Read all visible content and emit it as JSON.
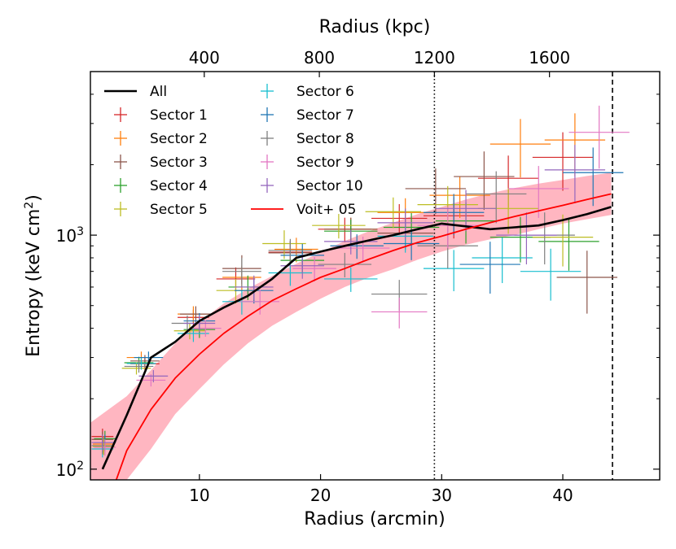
{
  "chart_data": {
    "type": "scatter",
    "xlabel": "Radius (arcmin)",
    "ylabel": "Entropy (keV cm",
    "ylabel_sup": "2",
    "ylabel_close": ")",
    "xlim": [
      1,
      48
    ],
    "ylim": [
      90,
      5000
    ],
    "yscale": "log",
    "x_ticks": [
      10,
      20,
      30,
      40
    ],
    "y_ticks": [
      {
        "value": 100,
        "base": "10",
        "exp": "2"
      },
      {
        "value": 1000,
        "base": "10",
        "exp": "3"
      }
    ],
    "top_axis": {
      "label": "Radius (kpc)",
      "ticks": [
        {
          "label": "400",
          "x": 10.4
        },
        {
          "label": "800",
          "x": 19.9
        },
        {
          "label": "1200",
          "x": 29.4
        },
        {
          "label": "1600",
          "x": 38.9
        }
      ]
    },
    "vlines": [
      {
        "name": "r500-dotted",
        "x": 29.4,
        "style": "dotted",
        "color": "#000000"
      },
      {
        "name": "r200-dashed",
        "x": 44.1,
        "style": "dashed",
        "color": "#000000"
      }
    ],
    "band": {
      "name": "voit-05-scatter",
      "color": "#ffb6c1",
      "x": [
        1,
        4,
        6,
        8,
        10,
        12,
        14,
        16,
        18,
        20,
        22,
        24,
        26,
        28,
        30,
        32,
        34,
        36,
        38,
        40,
        42,
        44
      ],
      "lower": [
        68,
        90,
        122,
        172,
        220,
        280,
        345,
        410,
        470,
        535,
        600,
        660,
        715,
        785,
        850,
        910,
        960,
        1000,
        1060,
        1120,
        1170,
        1220
      ],
      "upper": [
        158,
        205,
        265,
        345,
        425,
        510,
        590,
        670,
        755,
        845,
        945,
        1040,
        1130,
        1230,
        1320,
        1420,
        1510,
        1590,
        1660,
        1720,
        1790,
        1850
      ]
    },
    "series": [
      {
        "name": "All",
        "kind": "line",
        "color": "#000000",
        "x": [
          2,
          4,
          6,
          8,
          10,
          12,
          14,
          16,
          18,
          20,
          22,
          24,
          26,
          28,
          30,
          32,
          34,
          36,
          38,
          40,
          42,
          44
        ],
        "y": [
          100,
          170,
          300,
          350,
          430,
          490,
          550,
          650,
          800,
          850,
          900,
          950,
          1000,
          1060,
          1120,
          1090,
          1060,
          1080,
          1100,
          1160,
          1230,
          1320
        ]
      },
      {
        "name": "Voit+ 05",
        "kind": "line",
        "color": "#ff0000",
        "x": [
          3,
          4,
          6,
          8,
          10,
          12,
          14,
          16,
          18,
          20,
          22,
          24,
          26,
          28,
          30,
          32,
          34,
          36,
          38,
          40,
          42,
          44
        ],
        "y": [
          86,
          120,
          180,
          245,
          310,
          380,
          450,
          525,
          590,
          660,
          720,
          790,
          860,
          930,
          990,
          1060,
          1130,
          1200,
          1270,
          1340,
          1420,
          1500
        ]
      },
      {
        "name": "Sector 1",
        "kind": "errorbar",
        "color": "#d62728",
        "points": [
          [
            2.0,
            138,
            0.9,
            0.08
          ],
          [
            5.5,
            282,
            1.2,
            0.06
          ],
          [
            9.5,
            445,
            1.3,
            0.08
          ],
          [
            13.0,
            650,
            1.6,
            0.12
          ],
          [
            17.5,
            845,
            1.8,
            0.12
          ],
          [
            22.0,
            1060,
            2.2,
            0.12
          ],
          [
            26.5,
            1180,
            2.3,
            0.15
          ],
          [
            31.0,
            1210,
            2.5,
            0.2
          ],
          [
            35.5,
            1750,
            2.5,
            0.25
          ],
          [
            40.0,
            2150,
            2.5,
            0.28
          ]
        ]
      },
      {
        "name": "Sector 2",
        "kind": "errorbar",
        "color": "#ff7f0e",
        "points": [
          [
            2.1,
            128,
            0.9,
            0.08
          ],
          [
            5.2,
            300,
            1.2,
            0.06
          ],
          [
            9.5,
            460,
            1.3,
            0.08
          ],
          [
            13.5,
            660,
            1.6,
            0.12
          ],
          [
            18.0,
            870,
            1.8,
            0.12
          ],
          [
            22.5,
            1060,
            2.2,
            0.12
          ],
          [
            27.0,
            1250,
            2.3,
            0.15
          ],
          [
            31.5,
            1480,
            2.5,
            0.2
          ],
          [
            36.5,
            2450,
            2.5,
            0.28
          ],
          [
            41.0,
            2550,
            2.5,
            0.3
          ]
        ]
      },
      {
        "name": "Sector 3",
        "kind": "errorbar",
        "color": "#8c564b",
        "points": [
          [
            2.0,
            134,
            0.9,
            0.08
          ],
          [
            5.5,
            290,
            1.2,
            0.06
          ],
          [
            9.7,
            460,
            1.3,
            0.08
          ],
          [
            13.5,
            720,
            1.6,
            0.14
          ],
          [
            17.5,
            840,
            1.8,
            0.12
          ],
          [
            22.5,
            1060,
            2.2,
            0.12
          ],
          [
            27.0,
            1020,
            2.3,
            0.15
          ],
          [
            29.5,
            1580,
            2.5,
            0.22
          ],
          [
            33.5,
            1780,
            2.5,
            0.28
          ],
          [
            42.0,
            660,
            2.5,
            0.3
          ]
        ]
      },
      {
        "name": "Sector 4",
        "kind": "errorbar",
        "color": "#2ca02c",
        "points": [
          [
            2.2,
            135,
            0.9,
            0.08
          ],
          [
            5.0,
            285,
            1.2,
            0.06
          ],
          [
            10.0,
            395,
            1.3,
            0.08
          ],
          [
            14.0,
            600,
            1.6,
            0.12
          ],
          [
            18.5,
            780,
            1.8,
            0.12
          ],
          [
            22.5,
            1040,
            2.2,
            0.12
          ],
          [
            27.5,
            1080,
            2.3,
            0.15
          ],
          [
            32.0,
            1150,
            2.5,
            0.2
          ],
          [
            36.5,
            980,
            2.5,
            0.22
          ],
          [
            40.5,
            940,
            2.5,
            0.25
          ]
        ]
      },
      {
        "name": "Sector 5",
        "kind": "errorbar",
        "color": "#bcbd22",
        "points": [
          [
            2.1,
            125,
            0.9,
            0.08
          ],
          [
            4.8,
            270,
            1.2,
            0.06
          ],
          [
            9.2,
            390,
            1.3,
            0.08
          ],
          [
            13.0,
            580,
            1.6,
            0.12
          ],
          [
            17.0,
            920,
            1.8,
            0.14
          ],
          [
            21.5,
            1100,
            2.2,
            0.12
          ],
          [
            26.0,
            1260,
            2.3,
            0.15
          ],
          [
            30.5,
            1350,
            2.5,
            0.2
          ],
          [
            35.5,
            1300,
            2.5,
            0.22
          ],
          [
            40.0,
            980,
            2.5,
            0.25
          ]
        ]
      },
      {
        "name": "Sector 6",
        "kind": "errorbar",
        "color": "#17becf",
        "points": [
          [
            2.0,
            122,
            0.9,
            0.08
          ],
          [
            5.2,
            283,
            1.2,
            0.06
          ],
          [
            9.5,
            380,
            1.3,
            0.08
          ],
          [
            13.5,
            520,
            1.6,
            0.12
          ],
          [
            17.5,
            690,
            1.8,
            0.12
          ],
          [
            22.5,
            650,
            2.2,
            0.12
          ],
          [
            27.0,
            990,
            2.3,
            0.15
          ],
          [
            31.0,
            720,
            2.5,
            0.2
          ],
          [
            35.0,
            800,
            2.5,
            0.22
          ],
          [
            39.0,
            700,
            2.5,
            0.25
          ]
        ]
      },
      {
        "name": "Sector 7",
        "kind": "errorbar",
        "color": "#1f77b4",
        "points": [
          [
            2.2,
            130,
            0.9,
            0.08
          ],
          [
            5.8,
            300,
            1.2,
            0.06
          ],
          [
            10.0,
            430,
            1.3,
            0.08
          ],
          [
            14.5,
            580,
            1.6,
            0.12
          ],
          [
            18.5,
            820,
            1.8,
            0.12
          ],
          [
            23.0,
            900,
            2.2,
            0.12
          ],
          [
            27.5,
            920,
            2.3,
            0.15
          ],
          [
            31.0,
            1250,
            2.5,
            0.2
          ],
          [
            34.0,
            750,
            2.5,
            0.25
          ],
          [
            42.5,
            1850,
            2.5,
            0.28
          ]
        ]
      },
      {
        "name": "Sector 8",
        "kind": "errorbar",
        "color": "#7f7f7f",
        "points": [
          [
            2.0,
            126,
            0.9,
            0.08
          ],
          [
            5.0,
            275,
            1.2,
            0.06
          ],
          [
            9.0,
            420,
            1.3,
            0.08
          ],
          [
            13.5,
            700,
            1.6,
            0.14
          ],
          [
            17.5,
            860,
            1.8,
            0.12
          ],
          [
            22.0,
            750,
            2.2,
            0.12
          ],
          [
            26.5,
            560,
            2.3,
            0.15
          ],
          [
            30.5,
            900,
            2.5,
            0.2
          ],
          [
            34.5,
            1500,
            2.5,
            0.25
          ],
          [
            38.5,
            1000,
            2.5,
            0.25
          ]
        ]
      },
      {
        "name": "Sector 9",
        "kind": "errorbar",
        "color": "#e377c2",
        "points": [
          [
            2.2,
            124,
            0.9,
            0.08
          ],
          [
            6.0,
            240,
            1.2,
            0.06
          ],
          [
            10.5,
            400,
            1.3,
            0.08
          ],
          [
            15.0,
            520,
            1.6,
            0.12
          ],
          [
            19.5,
            720,
            1.8,
            0.12
          ],
          [
            23.5,
            880,
            2.2,
            0.12
          ],
          [
            26.5,
            470,
            2.3,
            0.15
          ],
          [
            30.5,
            1100,
            2.5,
            0.2
          ],
          [
            38.0,
            1580,
            2.5,
            0.25
          ],
          [
            43.0,
            2750,
            2.5,
            0.3
          ]
        ]
      },
      {
        "name": "Sector 10",
        "kind": "errorbar",
        "color": "#9467bd",
        "points": [
          [
            2.0,
            130,
            0.9,
            0.08
          ],
          [
            6.2,
            250,
            1.2,
            0.06
          ],
          [
            10.0,
            420,
            1.3,
            0.08
          ],
          [
            14.5,
            600,
            1.6,
            0.12
          ],
          [
            18.5,
            740,
            1.8,
            0.12
          ],
          [
            22.5,
            940,
            2.2,
            0.12
          ],
          [
            27.0,
            1130,
            2.3,
            0.15
          ],
          [
            32.0,
            1300,
            2.5,
            0.2
          ],
          [
            37.0,
            1000,
            2.5,
            0.25
          ],
          [
            41.0,
            1900,
            2.5,
            0.28
          ]
        ]
      }
    ],
    "legend": {
      "placement": "top-left",
      "columns": [
        [
          "All",
          "Sector 1",
          "Sector 2",
          "Sector 3",
          "Sector 4",
          "Sector 5"
        ],
        [
          "Sector 6",
          "Sector 7",
          "Sector 8",
          "Sector 9",
          "Sector 10",
          "Voit+ 05"
        ]
      ]
    }
  }
}
